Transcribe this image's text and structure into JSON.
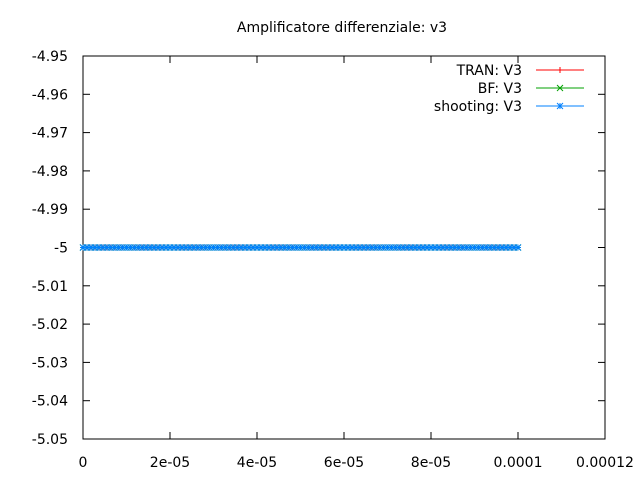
{
  "chart_data": {
    "type": "line",
    "title": "Amplificatore differenziale: v3",
    "xlabel": "",
    "ylabel": "",
    "xlim": [
      0,
      0.00012
    ],
    "ylim": [
      -5.05,
      -4.95
    ],
    "x_ticks": [
      "0",
      "2e-05",
      "4e-05",
      "6e-05",
      "8e-05",
      "0.0001",
      "0.00012"
    ],
    "x_tick_values": [
      0,
      2e-05,
      4e-05,
      6e-05,
      8e-05,
      0.0001,
      0.00012
    ],
    "y_ticks": [
      "-4.95",
      "-4.96",
      "-4.97",
      "-4.98",
      "-4.99",
      "-5",
      "-5.01",
      "-5.02",
      "-5.03",
      "-5.04",
      "-5.05"
    ],
    "y_tick_values": [
      -4.95,
      -4.96,
      -4.97,
      -4.98,
      -4.99,
      -5,
      -5.01,
      -5.02,
      -5.03,
      -5.04,
      -5.05
    ],
    "grid": false,
    "legend_position": "top-right",
    "series": [
      {
        "name": "TRAN: V3",
        "color": "#ff0000",
        "marker": "plus",
        "x_range": [
          0,
          0.0001
        ],
        "value": -5
      },
      {
        "name": "BF: V3",
        "color": "#00a000",
        "marker": "cross",
        "x_range": [
          0,
          0.0001
        ],
        "value": -5
      },
      {
        "name": "shooting: V3",
        "color": "#0080ff",
        "marker": "star",
        "x_range": [
          0,
          0.0001
        ],
        "value": -5
      }
    ]
  }
}
